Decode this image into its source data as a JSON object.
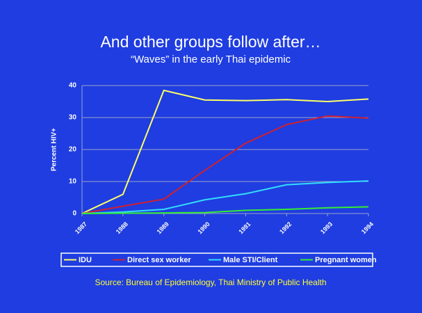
{
  "chart_data": {
    "type": "line",
    "title": "And other groups follow after…",
    "subtitle": "“Waves” in the early Thai epidemic",
    "ylabel": "Percent HIV+",
    "source": "Source: Bureau of Epidemiology, Thai Ministry of Public Health",
    "x": [
      1987,
      1988,
      1989,
      1990,
      1991,
      1992,
      1993,
      1994
    ],
    "xlim": [
      1987,
      1994
    ],
    "xticks": [
      1987,
      1988,
      1989,
      1990,
      1991,
      1992,
      1993,
      1994
    ],
    "ylim": [
      0,
      40
    ],
    "yticks": [
      0,
      10,
      20,
      30,
      40
    ],
    "grid": true,
    "legend": "bottom",
    "series": [
      {
        "name": "IDU",
        "color": "#ffff66",
        "values": [
          0,
          6,
          38.5,
          35.5,
          35.3,
          35.6,
          35,
          35.8
        ]
      },
      {
        "name": "Direct sex worker",
        "color": "#d02030",
        "values": [
          0,
          2.3,
          4.5,
          13.5,
          22,
          27.8,
          30.5,
          29.8
        ]
      },
      {
        "name": "Male STI/Client",
        "color": "#33ddff",
        "values": [
          0,
          0.5,
          1.3,
          4.3,
          6.2,
          9,
          9.7,
          10.2
        ]
      },
      {
        "name": "Pregnant women",
        "color": "#33ee33",
        "values": [
          0,
          0.1,
          0.2,
          0.3,
          1,
          1.3,
          1.8,
          2.1
        ]
      }
    ]
  }
}
